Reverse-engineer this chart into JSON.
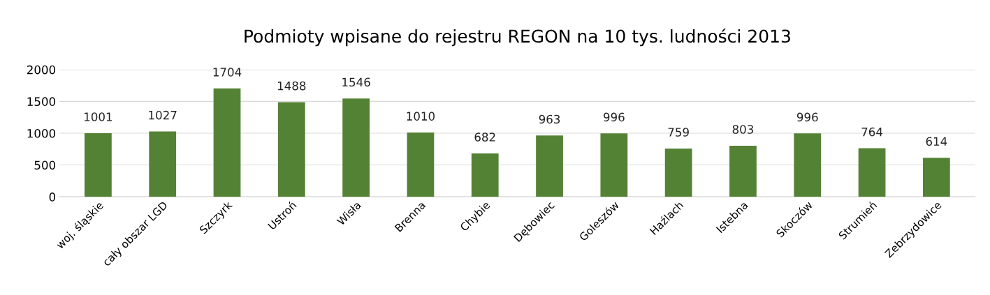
{
  "chart_data": {
    "type": "bar",
    "title": "Podmioty wpisane do rejestru REGON na 10 tys. ludności 2013",
    "categories": [
      "woj. śląskie",
      "cały obszar LGD",
      "Szczyrk",
      "Ustroń",
      "Wisła",
      "Brenna",
      "Chybie",
      "Dębowiec",
      "Goleszów",
      "Haźlach",
      "Istebna",
      "Skoczów",
      "Strumień",
      "Zebrzydowice"
    ],
    "values": [
      1001,
      1027,
      1704,
      1488,
      1546,
      1010,
      682,
      963,
      996,
      759,
      803,
      996,
      764,
      614
    ],
    "color": "#548235",
    "ylim": [
      0,
      2000
    ],
    "yticks": [
      0,
      500,
      1000,
      1500,
      2000
    ],
    "grid": "y",
    "data_labels": true
  }
}
